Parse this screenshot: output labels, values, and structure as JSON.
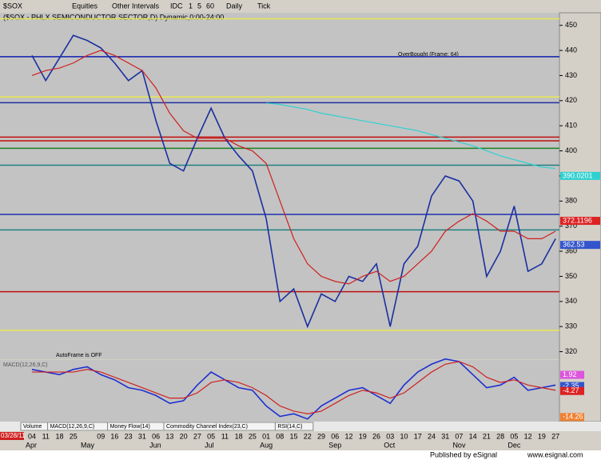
{
  "toolbar": {
    "symbol": "$SOX",
    "items": [
      "Equities",
      "Other Intervals",
      "IDC",
      "1",
      "5",
      "60",
      "Daily",
      "Tick"
    ]
  },
  "tabs": [
    "Volume",
    "MACD(12,26,9,C)",
    "Money Flow(14)",
    "Commodity Channel Index(23,C)",
    "RSI(14,C)"
  ],
  "start_date": "03/28/11",
  "footer": {
    "left": "Published by eSignal",
    "right": "www.esignal.com"
  },
  "chart_data": [
    {
      "type": "line",
      "title": "($SOX - PHLX SEMICONDUCTOR SECTOR,D) Dynamic,0:00-24:00",
      "annotations": [
        "OverBought (Frame: 64)",
        "AutoFrame is OFF"
      ],
      "categories": [
        "04",
        "11",
        "18",
        "25",
        null,
        "09",
        "16",
        "23",
        "31",
        "06",
        "13",
        "20",
        "27",
        "05",
        "11",
        "18",
        "25",
        "01",
        "08",
        "15",
        "22",
        "29",
        "06",
        "12",
        "19",
        "26",
        "03",
        "10",
        "17",
        "24",
        "31",
        "07",
        "14",
        "21",
        "28",
        "05",
        "12",
        "19",
        "27"
      ],
      "months": [
        "Apr",
        null,
        null,
        null,
        "May",
        null,
        null,
        null,
        null,
        "Jun",
        null,
        null,
        null,
        "Jul",
        null,
        null,
        null,
        "Aug",
        null,
        null,
        null,
        null,
        "Sep",
        null,
        null,
        null,
        "Oct",
        null,
        null,
        null,
        null,
        "Nov",
        null,
        null,
        null,
        "Dec",
        null,
        null,
        null
      ],
      "series": [
        {
          "name": "$SOX",
          "color": "#1a2fa0",
          "values": [
            438,
            428,
            437,
            446,
            444,
            441,
            435,
            428,
            432,
            412,
            395,
            392,
            405,
            417,
            405,
            398,
            392,
            373,
            340,
            345,
            330,
            343,
            340,
            350,
            348,
            355,
            330,
            355,
            362,
            382,
            390,
            388,
            380,
            350,
            360,
            378,
            352,
            355,
            365
          ]
        },
        {
          "name": "MA",
          "color": "#d02020",
          "values": [
            430,
            432,
            433,
            435,
            438,
            440,
            438,
            435,
            432,
            425,
            415,
            408,
            405,
            405,
            405,
            402,
            400,
            395,
            380,
            365,
            355,
            350,
            348,
            347,
            350,
            352,
            348,
            350,
            355,
            360,
            368,
            372,
            375,
            372,
            368,
            368,
            365,
            365,
            368
          ]
        },
        {
          "name": "MA200",
          "color": "#30d0d0",
          "values": [
            null,
            null,
            null,
            null,
            null,
            null,
            null,
            null,
            null,
            null,
            null,
            null,
            null,
            null,
            null,
            null,
            null,
            419,
            418.5,
            417.5,
            416.5,
            415,
            414,
            413,
            412,
            411,
            410,
            409,
            408,
            406.5,
            405,
            403.5,
            402,
            400,
            398,
            396.5,
            395,
            393.5,
            393
          ]
        }
      ],
      "hlines": [
        {
          "value": 452.6,
          "color": "#e8e850"
        },
        {
          "value": 437.5,
          "color": "#1020b0"
        },
        {
          "value": 421.5,
          "color": "#e8e850"
        },
        {
          "value": 419.2,
          "color": "#2030a0"
        },
        {
          "value": 405.5,
          "color": "#c01010"
        },
        {
          "value": 404,
          "color": "#c01010"
        },
        {
          "value": 401,
          "color": "#208020"
        },
        {
          "value": 394.3,
          "color": "#208080"
        },
        {
          "value": 374.7,
          "color": "#2030b0"
        },
        {
          "value": 368.5,
          "color": "#208080"
        },
        {
          "value": 343.9,
          "color": "#c01010"
        },
        {
          "value": 328.5,
          "color": "#e8e850"
        }
      ],
      "price_markers": [
        {
          "value": 390.0201,
          "color": "#30d0d0"
        },
        {
          "value": 372.1196,
          "color": "#dd2222"
        },
        {
          "value": 362.53,
          "color": "#3355cc"
        }
      ],
      "ylim": [
        317,
        455
      ],
      "yticks": [
        320,
        330,
        340,
        350,
        360,
        370,
        380,
        390,
        400,
        410,
        420,
        430,
        440,
        450
      ]
    },
    {
      "type": "line",
      "title": "MACD(12,26,9,C)",
      "series": [
        {
          "name": "MACD",
          "color": "#2030d0",
          "values": [
            4,
            3,
            2,
            4,
            5,
            2,
            0,
            -3,
            -4,
            -6,
            -9,
            -8,
            -2,
            3,
            0,
            -3,
            -4,
            -10,
            -14,
            -13,
            -15,
            -10,
            -7,
            -4,
            -3,
            -6,
            -9,
            -2,
            3,
            6,
            8,
            7,
            2,
            -3,
            -2,
            1,
            -4,
            -3,
            -2
          ]
        },
        {
          "name": "Signal",
          "color": "#d02020",
          "values": [
            3,
            3,
            3,
            3,
            4,
            3,
            1,
            -1,
            -3,
            -5,
            -7,
            -7,
            -5,
            -1,
            0,
            -1,
            -3,
            -6,
            -10,
            -12,
            -13,
            -12,
            -9,
            -6,
            -4,
            -5,
            -7,
            -5,
            -1,
            3,
            6,
            7,
            5,
            1,
            -1,
            0,
            -2,
            -3,
            -4
          ]
        }
      ],
      "value_markers": [
        {
          "value": 1.92,
          "color": "#dd55dd"
        },
        {
          "value": -2.35,
          "color": "#3355cc"
        },
        {
          "value": -4.27,
          "color": "#dd2222"
        },
        {
          "value": -14.26,
          "color": "#f08030"
        }
      ],
      "ylim": [
        -16,
        7
      ]
    }
  ]
}
